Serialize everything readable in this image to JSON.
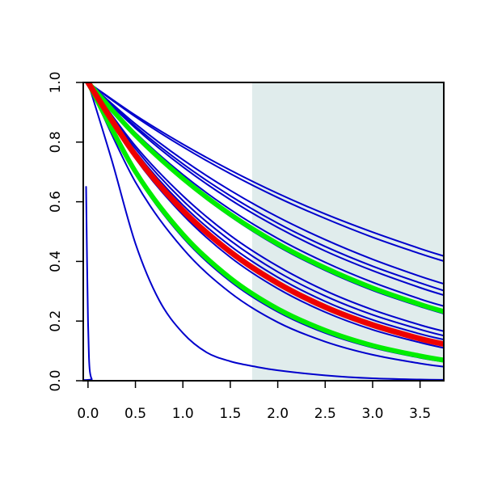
{
  "chart_data": {
    "type": "line",
    "title": "",
    "xlabel": "",
    "ylabel": "",
    "xlim": [
      -0.05,
      3.75
    ],
    "ylim": [
      0.0,
      1.0
    ],
    "x_ticks": [
      0.0,
      0.5,
      1.0,
      1.5,
      2.0,
      2.5,
      3.0,
      3.5
    ],
    "x_tick_labels": [
      "0.0",
      "0.5",
      "1.0",
      "1.5",
      "2.0",
      "2.5",
      "3.0",
      "3.5"
    ],
    "y_ticks": [
      0.0,
      0.2,
      0.4,
      0.6,
      0.8,
      1.0
    ],
    "y_tick_labels": [
      "0.0",
      "0.2",
      "0.4",
      "0.6",
      "0.8",
      "1.0"
    ],
    "shaded_region": {
      "x_start": 1.73,
      "x_end": 3.75,
      "color": "#e0ecec"
    },
    "grid": false,
    "legend": "none",
    "series": [
      {
        "color": "#0000cc",
        "width": "thin",
        "x": [
          -0.02,
          -0.01,
          0.0,
          0.01,
          0.02,
          0.04,
          0.07,
          3.75
        ],
        "y": [
          0.65,
          0.4,
          0.2,
          0.08,
          0.03,
          0.005,
          0.0,
          0.0
        ]
      },
      {
        "color": "#0000cc",
        "width": "thin",
        "x": [
          0.0,
          0.25,
          0.5,
          0.75,
          1.0,
          1.25,
          1.5,
          1.75,
          2.0,
          2.5,
          3.0,
          3.5,
          3.75
        ],
        "y": [
          1.0,
          0.74,
          0.46,
          0.27,
          0.16,
          0.095,
          0.065,
          0.048,
          0.035,
          0.018,
          0.008,
          0.004,
          0.003
        ]
      },
      {
        "color": "#0000cc",
        "width": "thin",
        "x": [
          0.0,
          0.5,
          1.0,
          1.5,
          2.0,
          2.5,
          3.0,
          3.5,
          3.75
        ],
        "y": [
          1.0,
          0.778,
          0.604,
          0.47,
          0.365,
          0.284,
          0.221,
          0.172,
          0.151
        ]
      },
      {
        "color": "#0000cc",
        "width": "thin",
        "x": [
          0.0,
          0.5,
          1.0,
          1.5,
          2.0,
          2.5,
          3.0,
          3.5,
          3.75
        ],
        "y": [
          1.0,
          0.768,
          0.589,
          0.452,
          0.347,
          0.266,
          0.204,
          0.157,
          0.138
        ]
      },
      {
        "color": "#0000cc",
        "width": "thin",
        "x": [
          0.0,
          0.5,
          1.0,
          1.5,
          2.0,
          2.5,
          3.0,
          3.5,
          3.75
        ],
        "y": [
          1.0,
          0.745,
          0.556,
          0.414,
          0.309,
          0.23,
          0.171,
          0.128,
          0.11
        ]
      },
      {
        "color": "#0000cc",
        "width": "thin",
        "x": [
          0.0,
          0.5,
          1.0,
          1.5,
          2.0,
          2.5,
          3.0,
          3.5,
          3.75
        ],
        "y": [
          1.0,
          0.693,
          0.48,
          0.333,
          0.231,
          0.16,
          0.111,
          0.077,
          0.064
        ]
      },
      {
        "color": "#0000cc",
        "width": "thin",
        "x": [
          0.0,
          0.5,
          1.0,
          1.5,
          2.0,
          2.5,
          3.0,
          3.5,
          3.75
        ],
        "y": [
          1.0,
          0.666,
          0.443,
          0.295,
          0.196,
          0.131,
          0.087,
          0.058,
          0.047
        ]
      },
      {
        "color": "#0000cc",
        "width": "thin",
        "x": [
          0.0,
          0.5,
          1.0,
          1.5,
          2.0,
          2.5,
          3.0,
          3.5,
          3.75
        ],
        "y": [
          1.0,
          0.787,
          0.62,
          0.487,
          0.384,
          0.302,
          0.238,
          0.187,
          0.166
        ]
      },
      {
        "color": "#0000cc",
        "width": "thin",
        "x": [
          0.0,
          0.5,
          1.0,
          1.5,
          2.0,
          2.5,
          3.0,
          3.5,
          3.75
        ],
        "y": [
          1.0,
          0.82,
          0.672,
          0.551,
          0.451,
          0.37,
          0.303,
          0.249,
          0.225
        ]
      },
      {
        "color": "#0000cc",
        "width": "thin",
        "x": [
          0.0,
          0.5,
          1.0,
          1.5,
          2.0,
          2.5,
          3.0,
          3.5,
          3.75
        ],
        "y": [
          1.0,
          0.831,
          0.691,
          0.574,
          0.477,
          0.397,
          0.33,
          0.274,
          0.25
        ]
      },
      {
        "color": "#0000cc",
        "width": "thin",
        "x": [
          0.0,
          0.5,
          1.0,
          1.5,
          2.0,
          2.5,
          3.0,
          3.5,
          3.75
        ],
        "y": [
          1.0,
          0.847,
          0.717,
          0.607,
          0.514,
          0.435,
          0.369,
          0.312,
          0.287
        ]
      },
      {
        "color": "#0000cc",
        "width": "thin",
        "x": [
          0.0,
          0.5,
          1.0,
          1.5,
          2.0,
          2.5,
          3.0,
          3.5,
          3.75
        ],
        "y": [
          1.0,
          0.853,
          0.727,
          0.62,
          0.528,
          0.45,
          0.384,
          0.328,
          0.302
        ]
      },
      {
        "color": "#0000cc",
        "width": "thin",
        "x": [
          0.0,
          0.5,
          1.0,
          1.5,
          2.0,
          2.5,
          3.0,
          3.5,
          3.75
        ],
        "y": [
          1.0,
          0.861,
          0.741,
          0.638,
          0.549,
          0.473,
          0.407,
          0.35,
          0.325
        ]
      },
      {
        "color": "#0000cc",
        "width": "thin",
        "x": [
          0.0,
          0.5,
          1.0,
          1.5,
          2.0,
          2.5,
          3.0,
          3.5,
          3.75
        ],
        "y": [
          1.0,
          0.885,
          0.784,
          0.694,
          0.614,
          0.544,
          0.481,
          0.426,
          0.401
        ]
      },
      {
        "color": "#0000cc",
        "width": "thin",
        "x": [
          0.0,
          0.5,
          1.0,
          1.5,
          2.0,
          2.5,
          3.0,
          3.5,
          3.75
        ],
        "y": [
          1.0,
          0.89,
          0.793,
          0.706,
          0.628,
          0.559,
          0.498,
          0.443,
          0.418
        ]
      },
      {
        "color": "#00ee00",
        "width": "thick",
        "x": [
          0.0,
          0.5,
          1.0,
          1.5,
          2.0,
          2.5,
          3.0,
          3.5,
          3.75
        ],
        "y": [
          1.0,
          0.823,
          0.678,
          0.558,
          0.459,
          0.378,
          0.311,
          0.256,
          0.232
        ]
      },
      {
        "color": "#00ee00",
        "width": "thick",
        "x": [
          0.0,
          0.5,
          1.0,
          1.5,
          2.0,
          2.5,
          3.0,
          3.5,
          3.75
        ],
        "y": [
          1.0,
          0.701,
          0.491,
          0.344,
          0.241,
          0.169,
          0.118,
          0.083,
          0.069
        ]
      },
      {
        "color": "#ee0000",
        "width": "thicker",
        "x": [
          0.0,
          0.5,
          1.0,
          1.5,
          2.0,
          2.5,
          3.0,
          3.5,
          3.75
        ],
        "y": [
          1.0,
          0.756,
          0.571,
          0.432,
          0.327,
          0.247,
          0.187,
          0.141,
          0.123
        ]
      }
    ]
  }
}
